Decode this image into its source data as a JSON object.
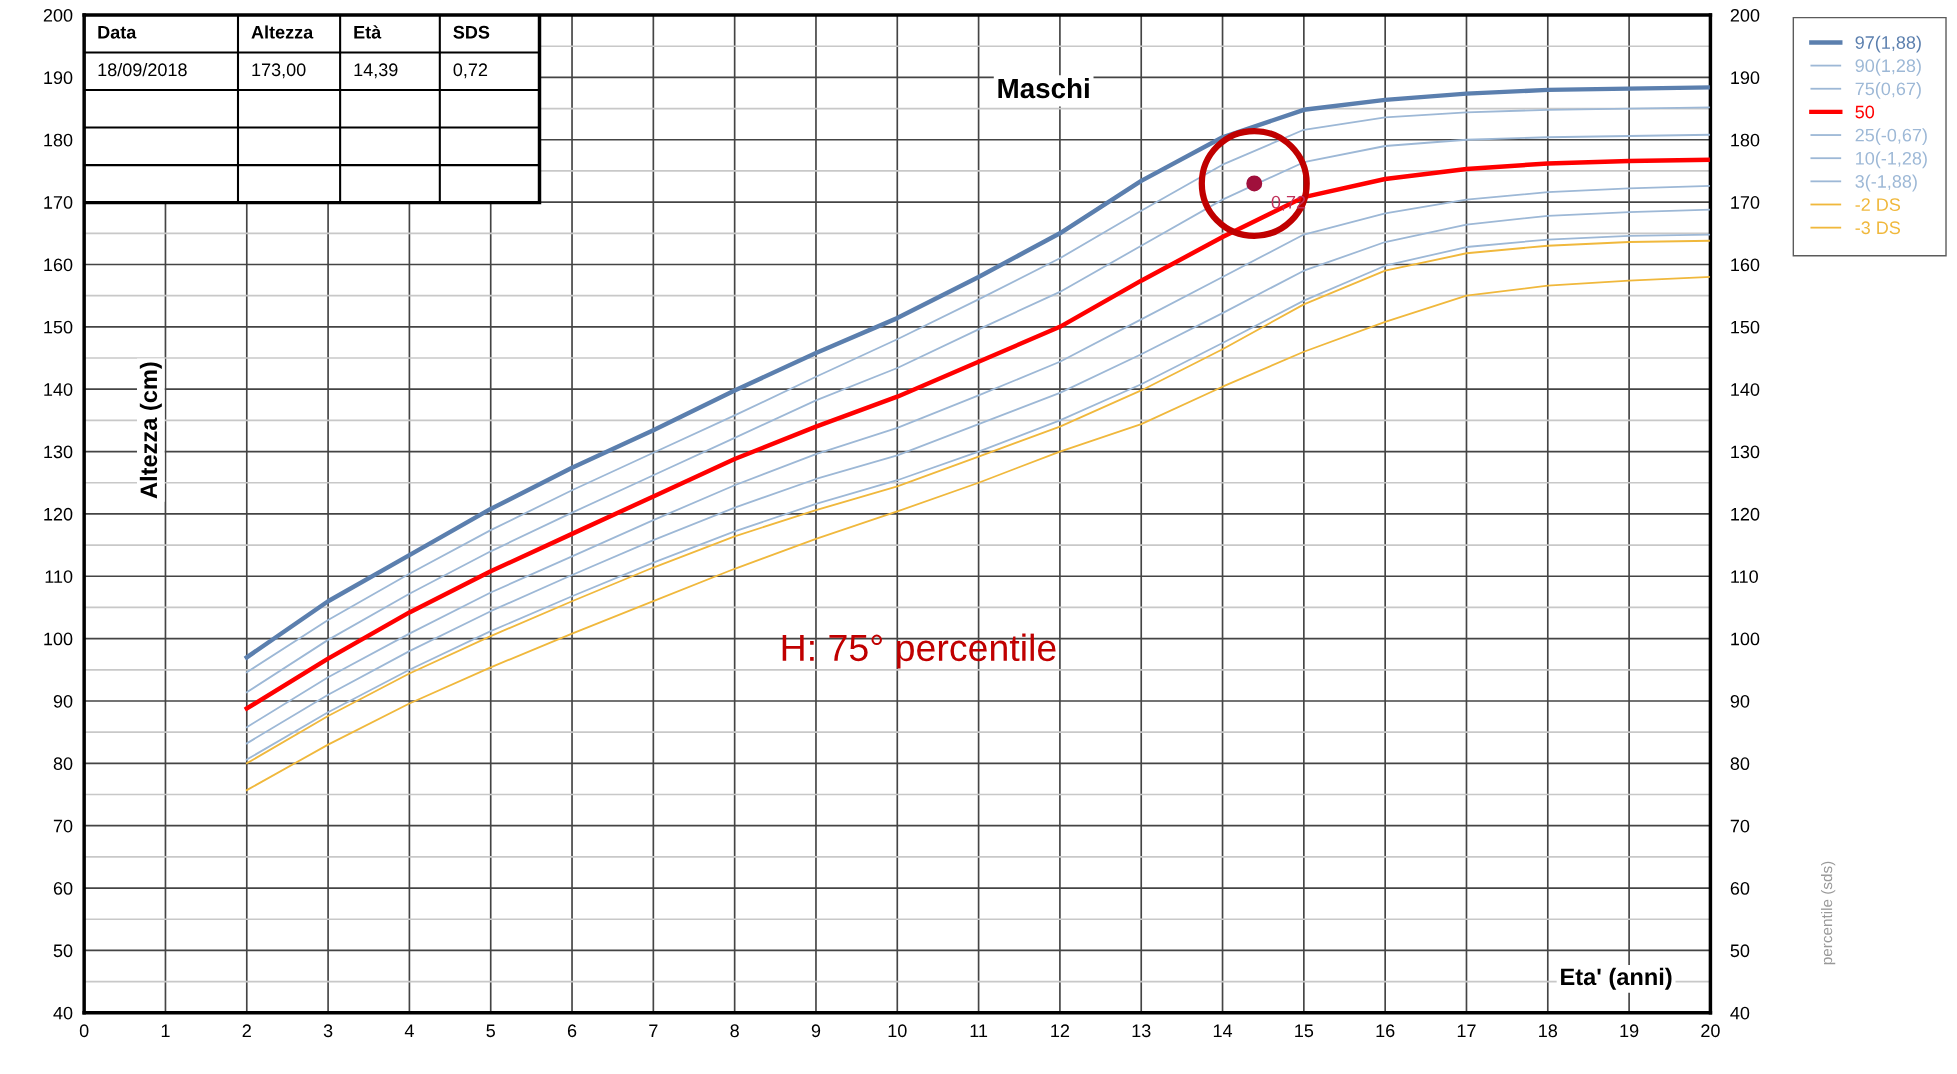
{
  "chart_data": {
    "type": "line",
    "title": "Maschi",
    "xlabel": "Eta' (anni)",
    "ylabel": "Altezza (cm)",
    "y2label": "percentile (sds)",
    "x": [
      2,
      3,
      4,
      5,
      6,
      7,
      8,
      9,
      10,
      11,
      12,
      13,
      14,
      15,
      16,
      17,
      18,
      19,
      20
    ],
    "series": [
      {
        "name": "97(1,88)",
        "color": "#5b7fae",
        "values": [
          97,
          106,
          113.4,
          120.8,
          127.4,
          133.4,
          139.8,
          145.8,
          151.4,
          158,
          165,
          173.4,
          180.4,
          184.8,
          186.4,
          187.4,
          188,
          188.2,
          188.4
        ]
      },
      {
        "name": "90(1,28)",
        "color": "#9db8d6",
        "values": [
          94.6,
          103,
          110.4,
          117.4,
          123.8,
          129.8,
          135.8,
          142,
          148,
          154.4,
          161,
          168.6,
          176,
          181.6,
          183.6,
          184.4,
          184.8,
          185,
          185.2
        ]
      },
      {
        "name": "75(0,67)",
        "color": "#9db8d6",
        "values": [
          91.4,
          99.8,
          107.2,
          114,
          120.2,
          126.2,
          132.2,
          138.2,
          143.4,
          149.6,
          155.6,
          163,
          170.4,
          176.4,
          179,
          180,
          180.4,
          180.6,
          180.8
        ]
      },
      {
        "name": "50",
        "color": "#ff0000",
        "values": [
          88.8,
          96.8,
          104.2,
          110.8,
          116.8,
          122.8,
          128.8,
          134,
          138.8,
          144.4,
          150,
          157.4,
          164.4,
          170.8,
          173.7,
          175.3,
          176.2,
          176.6,
          176.8
        ]
      },
      {
        "name": "25(-0,67)",
        "color": "#9db8d6",
        "values": [
          85.8,
          93.8,
          100.8,
          107.4,
          113.2,
          119,
          124.6,
          129.6,
          133.8,
          139,
          144.4,
          151.2,
          158,
          164.8,
          168.2,
          170.4,
          171.6,
          172.2,
          172.6
        ]
      },
      {
        "name": "10(-1,28)",
        "color": "#9db8d6",
        "values": [
          83.2,
          91,
          98,
          104.4,
          110.2,
          115.8,
          121,
          125.6,
          129.4,
          134.4,
          139.4,
          145.6,
          152.2,
          159,
          163.6,
          166.4,
          167.8,
          168.4,
          168.8
        ]
      },
      {
        "name": "3(-1,88)",
        "color": "#9db8d6",
        "values": [
          80.6,
          88.2,
          95,
          101.2,
          106.8,
          112.2,
          117.2,
          121.6,
          125.4,
          130,
          135,
          140.8,
          147.4,
          154.2,
          159.8,
          162.8,
          164,
          164.6,
          164.8
        ]
      },
      {
        "name": "-2 DS",
        "color": "#f0b83c",
        "values": [
          80,
          87.6,
          94.4,
          100.4,
          106,
          111.4,
          116.4,
          120.6,
          124.4,
          129.2,
          134,
          139.8,
          146.4,
          153.6,
          159,
          161.8,
          163,
          163.6,
          163.8
        ]
      },
      {
        "name": "-3 DS",
        "color": "#f0b83c",
        "values": [
          75.7,
          83,
          89.6,
          95.4,
          100.8,
          106,
          111.2,
          116,
          120.4,
          125,
          130,
          134.4,
          140.4,
          146,
          150.8,
          155,
          156.6,
          157.4,
          158
        ]
      },
      {
        "type": "scatter",
        "x": [
          14.39
        ],
        "color": "#a0103c",
        "marker": "circle",
        "values": [
          173
        ]
      }
    ],
    "xlim": [
      0,
      20
    ],
    "xticks": [
      0,
      1,
      2,
      3,
      4,
      5,
      6,
      7,
      8,
      9,
      10,
      11,
      12,
      13,
      14,
      15,
      16,
      17,
      18,
      19,
      20
    ],
    "ylim": [
      40,
      200
    ],
    "yticks": [
      40,
      50,
      60,
      70,
      80,
      90,
      100,
      110,
      120,
      130,
      140,
      150,
      160,
      170,
      180,
      190,
      200
    ],
    "y2lim": [
      40,
      200
    ],
    "y2ticks": [
      40,
      50,
      60,
      70,
      80,
      90,
      100,
      110,
      120,
      130,
      140,
      150,
      160,
      170,
      180,
      190,
      200
    ],
    "grid": true,
    "legend": "top right",
    "annotations": [
      "Data",
      "Altezza",
      "Età",
      "SDS",
      "18/09/2018",
      "173,00",
      "14,39",
      "0,72",
      "H: 75° percentile",
      {
        "text": "0,72",
        "x": 14.39,
        "y": 173
      }
    ]
  }
}
